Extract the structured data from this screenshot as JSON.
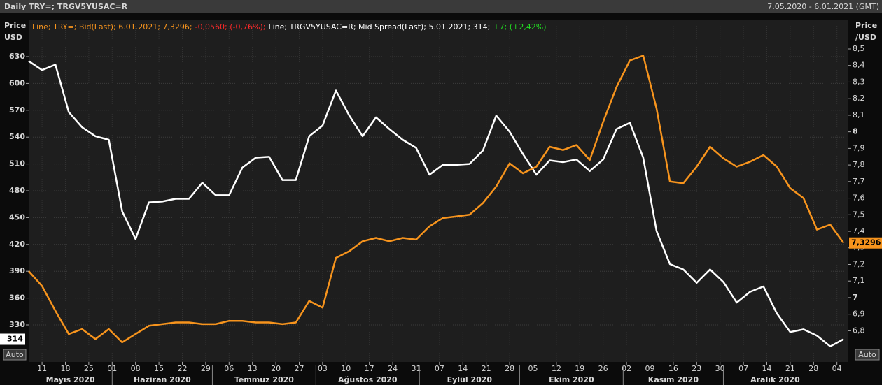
{
  "chart_data": {
    "type": "line",
    "title": "Daily TRY=; TRGV5YUSAC=R",
    "date_range": "7.05.2020 - 6.01.2021 (GMT)",
    "ylabel": [
      "Price",
      "USD"
    ],
    "y2label": [
      "Price",
      "/USD"
    ],
    "auto_button": "Auto",
    "legend": [
      {
        "text": "Line; TRY=; Bid(Last); 6.01.2021; 7,3296;",
        "color": "#f7941d"
      },
      {
        "text": "-0,0560; (-0,76%);",
        "color": "#ff2a2a"
      },
      {
        "text": "Line; TRGV5YUSAC=R; Mid Spread(Last); 5.01.2021; 314;",
        "color": "#ffffff"
      },
      {
        "text": "+7; (+2,42%)",
        "color": "#22dd22"
      }
    ],
    "x": [
      "2020-05-07",
      "2020-05-11",
      "2020-05-15",
      "2020-05-19",
      "2020-05-23",
      "2020-05-27",
      "2020-05-31",
      "2020-06-04",
      "2020-06-08",
      "2020-06-12",
      "2020-06-16",
      "2020-06-20",
      "2020-06-24",
      "2020-06-28",
      "2020-07-02",
      "2020-07-06",
      "2020-07-10",
      "2020-07-14",
      "2020-07-18",
      "2020-07-22",
      "2020-07-26",
      "2020-07-30",
      "2020-08-03",
      "2020-08-07",
      "2020-08-11",
      "2020-08-15",
      "2020-08-19",
      "2020-08-23",
      "2020-08-27",
      "2020-08-31",
      "2020-09-04",
      "2020-09-08",
      "2020-09-12",
      "2020-09-16",
      "2020-09-20",
      "2020-09-24",
      "2020-09-28",
      "2020-10-02",
      "2020-10-06",
      "2020-10-10",
      "2020-10-14",
      "2020-10-18",
      "2020-10-22",
      "2020-10-26",
      "2020-10-30",
      "2020-11-03",
      "2020-11-07",
      "2020-11-11",
      "2020-11-15",
      "2020-11-19",
      "2020-11-23",
      "2020-11-27",
      "2020-12-01",
      "2020-12-05",
      "2020-12-09",
      "2020-12-13",
      "2020-12-17",
      "2020-12-21",
      "2020-12-25",
      "2020-12-29",
      "2021-01-02",
      "2021-01-06"
    ],
    "series": [
      {
        "color": "#ffffff",
        "axis": "y",
        "values": [
          625,
          615,
          621,
          568,
          551,
          541,
          537,
          457,
          426,
          467,
          468,
          471,
          471,
          489,
          475,
          475,
          506,
          517,
          518,
          492,
          492,
          541,
          553,
          592,
          564,
          541,
          562,
          549,
          537,
          528,
          498,
          509,
          509,
          510,
          525,
          564,
          546,
          521,
          498,
          514,
          512,
          515,
          502,
          515,
          549,
          556,
          517,
          435,
          398,
          392,
          377,
          392,
          378,
          355,
          367,
          373,
          343,
          322,
          325,
          318,
          306,
          314
        ]
      },
      {
        "color": "#f7941d",
        "axis": "y2",
        "last_label": "7,3296",
        "values": [
          7.16,
          7.07,
          6.92,
          6.78,
          6.81,
          6.75,
          6.81,
          6.73,
          6.78,
          6.83,
          6.84,
          6.85,
          6.85,
          6.84,
          6.84,
          6.86,
          6.86,
          6.85,
          6.85,
          6.84,
          6.85,
          6.98,
          6.94,
          7.24,
          7.28,
          7.34,
          7.36,
          7.34,
          7.36,
          7.35,
          7.43,
          7.48,
          7.49,
          7.5,
          7.57,
          7.67,
          7.81,
          7.75,
          7.79,
          7.91,
          7.89,
          7.92,
          7.83,
          8.06,
          8.27,
          8.43,
          8.46,
          8.14,
          7.7,
          7.69,
          7.79,
          7.91,
          7.84,
          7.79,
          7.82,
          7.86,
          7.79,
          7.66,
          7.6,
          7.41,
          7.44,
          7.3296
        ]
      }
    ],
    "xlim": [
      "2020-05-07",
      "2021-01-07"
    ],
    "xticks": [
      {
        "value": "2020-05-11",
        "label": "11"
      },
      {
        "value": "2020-05-18",
        "label": "18"
      },
      {
        "value": "2020-05-25",
        "label": "25"
      },
      {
        "value": "2020-06-01",
        "label": "01"
      },
      {
        "value": "2020-06-08",
        "label": "08"
      },
      {
        "value": "2020-06-15",
        "label": "15"
      },
      {
        "value": "2020-06-22",
        "label": "22"
      },
      {
        "value": "2020-06-29",
        "label": "29"
      },
      {
        "value": "2020-07-06",
        "label": "06"
      },
      {
        "value": "2020-07-13",
        "label": "13"
      },
      {
        "value": "2020-07-20",
        "label": "20"
      },
      {
        "value": "2020-07-27",
        "label": "27"
      },
      {
        "value": "2020-08-03",
        "label": "03"
      },
      {
        "value": "2020-08-10",
        "label": "10"
      },
      {
        "value": "2020-08-17",
        "label": "17"
      },
      {
        "value": "2020-08-24",
        "label": "24"
      },
      {
        "value": "2020-08-31",
        "label": "31"
      },
      {
        "value": "2020-09-07",
        "label": "07"
      },
      {
        "value": "2020-09-14",
        "label": "14"
      },
      {
        "value": "2020-09-21",
        "label": "21"
      },
      {
        "value": "2020-09-28",
        "label": "28"
      },
      {
        "value": "2020-10-05",
        "label": "05"
      },
      {
        "value": "2020-10-12",
        "label": "12"
      },
      {
        "value": "2020-10-19",
        "label": "19"
      },
      {
        "value": "2020-10-26",
        "label": "26"
      },
      {
        "value": "2020-11-02",
        "label": "02"
      },
      {
        "value": "2020-11-09",
        "label": "09"
      },
      {
        "value": "2020-11-16",
        "label": "16"
      },
      {
        "value": "2020-11-23",
        "label": "23"
      },
      {
        "value": "2020-11-30",
        "label": "30"
      },
      {
        "value": "2020-12-07",
        "label": "07"
      },
      {
        "value": "2020-12-14",
        "label": "14"
      },
      {
        "value": "2020-12-21",
        "label": "21"
      },
      {
        "value": "2020-12-28",
        "label": "28"
      },
      {
        "value": "2021-01-04",
        "label": "04"
      }
    ],
    "months": [
      {
        "value": "2020-05",
        "label": "Mayıs 2020"
      },
      {
        "value": "2020-06",
        "label": "Haziran 2020"
      },
      {
        "value": "2020-07",
        "label": "Temmuz 2020"
      },
      {
        "value": "2020-08",
        "label": "Ağustos 2020"
      },
      {
        "value": "2020-09",
        "label": "Eylül 2020"
      },
      {
        "value": "2020-10",
        "label": "Ekim 2020"
      },
      {
        "value": "2020-11",
        "label": "Kasım 2020"
      },
      {
        "value": "2020-12",
        "label": "Aralık 2020"
      }
    ],
    "ylim": [
      288.6,
      671.4
    ],
    "yticks": [
      330,
      360,
      390,
      420,
      450,
      480,
      510,
      540,
      570,
      600,
      630
    ],
    "y2lim": [
      6.612,
      8.677
    ],
    "y2ticks": [
      {
        "value": 6.8,
        "label": "6,8"
      },
      {
        "value": 6.9,
        "label": "6,9"
      },
      7,
      {
        "value": 7.1,
        "label": "7,1"
      },
      {
        "value": 7.2,
        "label": "7,2"
      },
      {
        "value": 7.3,
        "label": "7,3"
      },
      {
        "value": 7.4,
        "label": "7,4"
      },
      {
        "value": 7.5,
        "label": "7,5"
      },
      {
        "value": 7.6,
        "label": "7,6"
      },
      {
        "value": 7.7,
        "label": "7,7"
      },
      {
        "value": 7.8,
        "label": "7,8"
      },
      {
        "value": 7.9,
        "label": "7,9"
      },
      8,
      {
        "value": 8.1,
        "label": "8,1"
      },
      {
        "value": 8.2,
        "label": "8,2"
      },
      {
        "value": 8.3,
        "label": "8,3"
      },
      {
        "value": 8.4,
        "label": "8,4"
      },
      {
        "value": 8.5,
        "label": "8,5"
      }
    ],
    "grid": true
  }
}
